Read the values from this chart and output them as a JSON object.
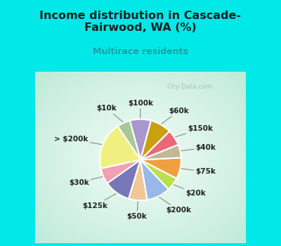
{
  "title": "Income distribution in Cascade-\nFairwood, WA (%)",
  "subtitle": "Multirace residents",
  "labels": [
    "$100k",
    "$10k",
    "> $200k",
    "$30k",
    "$125k",
    "$50k",
    "$200k",
    "$20k",
    "$75k",
    "$40k",
    "$150k",
    "$60k"
  ],
  "sizes": [
    8,
    5,
    18,
    6,
    10,
    7,
    9,
    5,
    8,
    5,
    6,
    8
  ],
  "colors": [
    "#a898cc",
    "#a8c898",
    "#f0f080",
    "#f0a0b0",
    "#7878b8",
    "#f0c898",
    "#98b8e8",
    "#b8e050",
    "#f0a040",
    "#c0b898",
    "#e86878",
    "#c8a010"
  ],
  "bg_color": "#00e8e8",
  "chart_bg_start": "#f0faf0",
  "chart_bg_end": "#d0f0e8",
  "title_color": "#202020",
  "subtitle_color": "#20a0a0",
  "label_color": "#202020",
  "label_fontsize": 7.5,
  "watermark": "City-Data.com",
  "startangle": 75
}
